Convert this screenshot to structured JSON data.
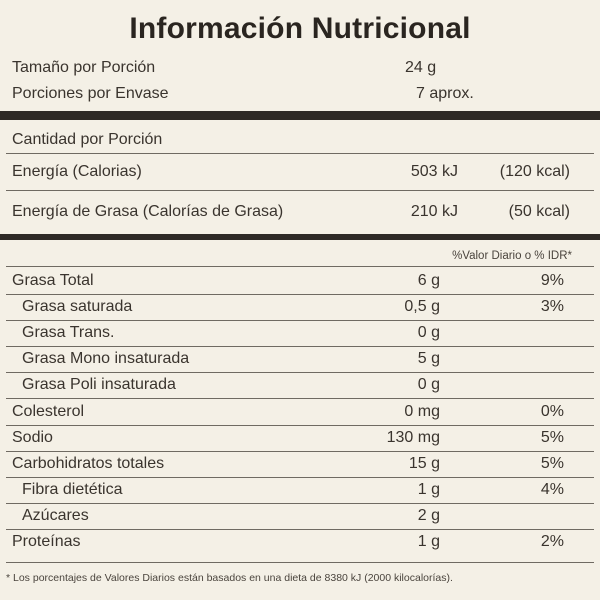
{
  "title": "Información Nutricional",
  "serving": {
    "size_label": "Tamaño por Porción",
    "size_value": "24 g",
    "count_label": "Porciones por Envase",
    "count_value": "7 aprox."
  },
  "energy": {
    "amount_label": "Cantidad por Porción",
    "calories_label": "Energía (Calorias)",
    "calories_kj": "503 kJ",
    "calories_kcal": "(120 kcal)",
    "fat_cal_label": "Energía de Grasa (Calorías de Grasa)",
    "fat_cal_kj": "210 kJ",
    "fat_cal_kcal": "(50 kcal)"
  },
  "dv_header": "%Valor Diario o % IDR*",
  "nutrients": [
    {
      "label": "Grasa Total",
      "amount": "6 g",
      "dv": "9%",
      "indent": false
    },
    {
      "label": "Grasa saturada",
      "amount": "0,5 g",
      "dv": "3%",
      "indent": true
    },
    {
      "label": "Grasa Trans.",
      "amount": "0 g",
      "dv": "",
      "indent": true
    },
    {
      "label": "Grasa Mono insaturada",
      "amount": "5 g",
      "dv": "",
      "indent": true
    },
    {
      "label": "Grasa Poli insaturada",
      "amount": "0 g",
      "dv": "",
      "indent": true
    },
    {
      "label": "Colesterol",
      "amount": "0 mg",
      "dv": "0%",
      "indent": false
    },
    {
      "label": "Sodio",
      "amount": "130 mg",
      "dv": "5%",
      "indent": false
    },
    {
      "label": "Carbohidratos totales",
      "amount": "15 g",
      "dv": "5%",
      "indent": false
    },
    {
      "label": "Fibra dietética",
      "amount": "1 g",
      "dv": "4%",
      "indent": true
    },
    {
      "label": "Azúcares",
      "amount": "2 g",
      "dv": "",
      "indent": true
    },
    {
      "label": "Proteínas",
      "amount": "1 g",
      "dv": "2%",
      "indent": false
    }
  ],
  "footnote": "* Los porcentajes de Valores Diarios están basados en una dieta de 8380 kJ (2000 kilocalorías)."
}
